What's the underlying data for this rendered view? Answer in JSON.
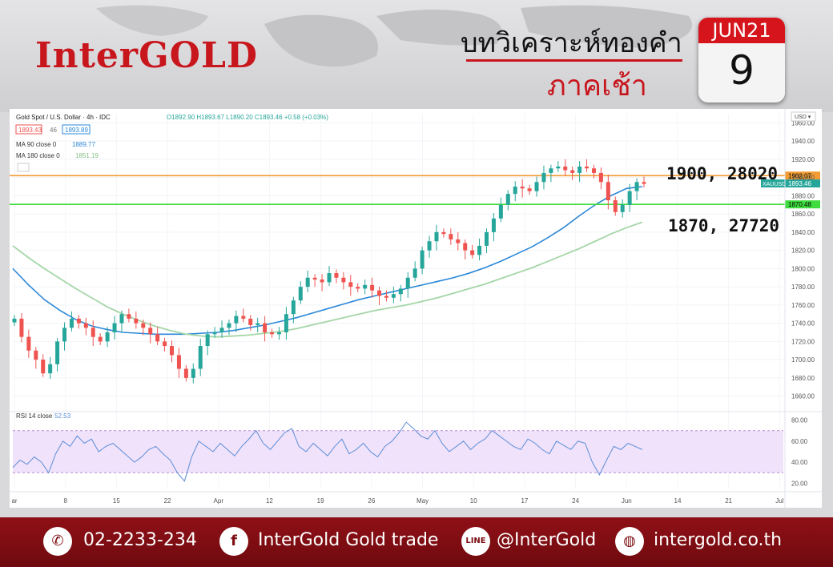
{
  "header": {
    "logo": "InterGOLD",
    "title_line1": "บทวิเคราะห์ทองคำ",
    "title_line2": "ภาคเช้า",
    "calendar_month": "JUN21",
    "calendar_day": "9"
  },
  "chart_data": {
    "type": "candlestick",
    "title": "Gold Spot / U.S. Dollar · 4h · IDC",
    "ohlc_label": "O1892.90 H1893.67 L1890.20 C1893.46 +0.58 (+0.03%)",
    "bid": "1893.43",
    "spread": "46",
    "ask": "1893.89",
    "currency_label": "USD",
    "y_ticks": [
      1960,
      1940,
      1920,
      1900,
      1880,
      1860,
      1840,
      1820,
      1800,
      1780,
      1760,
      1740,
      1720,
      1700,
      1680,
      1660
    ],
    "y_tick_labels": [
      "1960.00",
      "1940.00",
      "1920.00",
      "1900.00",
      "1880.00",
      "1860.00",
      "1840.00",
      "1820.00",
      "1800.00",
      "1780.00",
      "1760.00",
      "1740.00",
      "1720.00",
      "1700.00",
      "1680.00",
      "1660.00"
    ],
    "ylim": [
      1650,
      1970
    ],
    "x_tick_labels": [
      "ar",
      "8",
      "15",
      "22",
      "Apr",
      "12",
      "19",
      "26",
      "May",
      "10",
      "17",
      "24",
      "Jun",
      "14",
      "21",
      "Jul"
    ],
    "close_path": [
      1745,
      1725,
      1710,
      1700,
      1685,
      1695,
      1720,
      1735,
      1745,
      1740,
      1735,
      1725,
      1720,
      1730,
      1740,
      1750,
      1745,
      1740,
      1735,
      1728,
      1720,
      1715,
      1705,
      1690,
      1680,
      1690,
      1715,
      1728,
      1730,
      1735,
      1740,
      1748,
      1745,
      1738,
      1740,
      1730,
      1728,
      1730,
      1750,
      1765,
      1780,
      1790,
      1788,
      1785,
      1795,
      1790,
      1785,
      1780,
      1778,
      1782,
      1776,
      1770,
      1768,
      1772,
      1778,
      1790,
      1800,
      1820,
      1830,
      1840,
      1838,
      1832,
      1828,
      1820,
      1815,
      1825,
      1840,
      1855,
      1870,
      1882,
      1890,
      1888,
      1885,
      1895,
      1905,
      1910,
      1912,
      1908,
      1905,
      1912,
      1910,
      1905,
      1895,
      1875,
      1862,
      1870,
      1885,
      1895,
      1893
    ],
    "series": [
      {
        "name": "MA 90 close 0",
        "value_label": "1889.77",
        "color": "#2b88d8",
        "values": [
          1800,
          1782,
          1766,
          1754,
          1744,
          1737,
          1733,
          1730,
          1729,
          1728,
          1728,
          1728,
          1729,
          1730,
          1732,
          1735,
          1738,
          1742,
          1746,
          1751,
          1756,
          1761,
          1766,
          1770,
          1774,
          1778,
          1782,
          1786,
          1790,
          1795,
          1801,
          1808,
          1816,
          1824,
          1834,
          1845,
          1858,
          1870,
          1880,
          1888,
          1890
        ]
      },
      {
        "name": "MA 180 close 0",
        "value_label": "1851.19",
        "color": "#a5d6a7",
        "values": [
          1825,
          1812,
          1800,
          1789,
          1778,
          1768,
          1758,
          1750,
          1743,
          1737,
          1732,
          1728,
          1726,
          1725,
          1726,
          1727,
          1729,
          1731,
          1734,
          1738,
          1742,
          1746,
          1750,
          1754,
          1757,
          1760,
          1764,
          1768,
          1773,
          1778,
          1783,
          1789,
          1795,
          1801,
          1808,
          1815,
          1822,
          1830,
          1838,
          1845,
          1851
        ]
      }
    ],
    "horizontal_lines": [
      {
        "level": 1902.07,
        "label": "1902.07",
        "color": "#f39c33"
      },
      {
        "level": 1870.48,
        "label": "1870.48",
        "color": "#3fdc3f"
      }
    ],
    "price_tag": {
      "symbol": "XAUUSD",
      "value": 1893.46,
      "label": "1893.46",
      "color": "#26a69a"
    },
    "annotations": [
      "1900, 28020",
      "1870, 27720"
    ],
    "rsi": {
      "name": "RSI 14 close",
      "value_label": "52.53",
      "y_tick_labels": [
        "80.00",
        "60.00",
        "40.00",
        "20.00"
      ],
      "ylim": [
        15,
        85
      ],
      "band": [
        30,
        70
      ],
      "values": [
        35,
        42,
        38,
        45,
        40,
        30,
        48,
        60,
        55,
        65,
        58,
        62,
        50,
        55,
        58,
        52,
        46,
        40,
        45,
        52,
        55,
        48,
        42,
        30,
        22,
        45,
        60,
        55,
        50,
        58,
        52,
        46,
        55,
        62,
        70,
        58,
        52,
        60,
        68,
        72,
        55,
        50,
        58,
        52,
        46,
        55,
        62,
        48,
        52,
        58,
        50,
        45,
        55,
        60,
        68,
        78,
        72,
        65,
        62,
        70,
        58,
        50,
        55,
        60,
        52,
        58,
        62,
        70,
        65,
        60,
        55,
        52,
        62,
        58,
        52,
        48,
        60,
        56,
        52,
        60,
        58,
        40,
        28,
        42,
        55,
        52,
        58,
        55,
        52
      ]
    }
  },
  "footer": {
    "phone": "02-2233-234",
    "facebook": "InterGold Gold trade",
    "line": "@InterGold",
    "website": "intergold.co.th",
    "line_icon_label": "LINE"
  }
}
